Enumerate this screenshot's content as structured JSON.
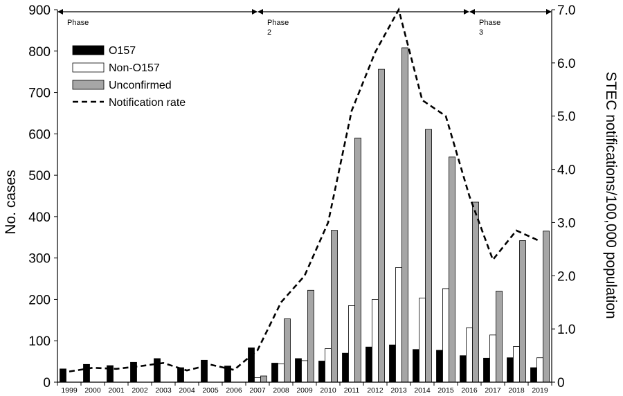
{
  "chart_data": {
    "type": "bar",
    "categories": [
      "1999",
      "2000",
      "2001",
      "2002",
      "2003",
      "2004",
      "2005",
      "2006",
      "2007",
      "2008",
      "2009",
      "2010",
      "2011",
      "2012",
      "2013",
      "2014",
      "2015",
      "2016",
      "2017",
      "2018",
      "2019"
    ],
    "series": [
      {
        "name": "O157",
        "color": "#000000",
        "values": [
          32,
          43,
          40,
          48,
          57,
          35,
          53,
          39,
          83,
          46,
          57,
          51,
          70,
          85,
          90,
          79,
          77,
          64,
          58,
          59,
          35
        ]
      },
      {
        "name": "Non-O157",
        "color": "#ffffff",
        "values": [
          0,
          0,
          0,
          0,
          0,
          0,
          0,
          0,
          11,
          44,
          52,
          81,
          185,
          200,
          277,
          203,
          226,
          131,
          114,
          86,
          59
        ]
      },
      {
        "name": "Unconfirmed",
        "color": "#a6a6a6",
        "values": [
          0,
          0,
          0,
          0,
          0,
          0,
          0,
          0,
          15,
          153,
          222,
          367,
          590,
          756,
          808,
          611,
          544,
          435,
          220,
          342,
          365
        ]
      }
    ],
    "line_series": {
      "name": "Notification rate",
      "axis": "right",
      "style": "dashed",
      "values": [
        0.2,
        0.27,
        0.25,
        0.3,
        0.36,
        0.22,
        0.33,
        0.23,
        0.6,
        1.5,
        2.0,
        3.0,
        5.1,
        6.2,
        7.0,
        5.3,
        5.0,
        3.5,
        2.3,
        2.85,
        2.65
      ]
    },
    "ylabel": "No. cases",
    "ylim": [
      0,
      900
    ],
    "yticks": [
      "0",
      "100",
      "200",
      "300",
      "400",
      "500",
      "600",
      "700",
      "800",
      "900"
    ],
    "y2label": "STEC notifications/100,000 population",
    "y2lim": [
      0,
      7
    ],
    "y2ticks": [
      "0",
      "1.0",
      "2.0",
      "3.0",
      "4.0",
      "5.0",
      "6.0",
      "7.0"
    ],
    "legend_position": "top-left",
    "phases": [
      {
        "label_line1": "Phase",
        "label_line2": "",
        "start": "1999",
        "end": "2007"
      },
      {
        "label_line1": "Phase",
        "label_line2": "2",
        "start": "2007",
        "end": "2016"
      },
      {
        "label_line1": "Phase",
        "label_line2": "3",
        "start": "2016",
        "end": "2019"
      }
    ],
    "grid": false
  }
}
